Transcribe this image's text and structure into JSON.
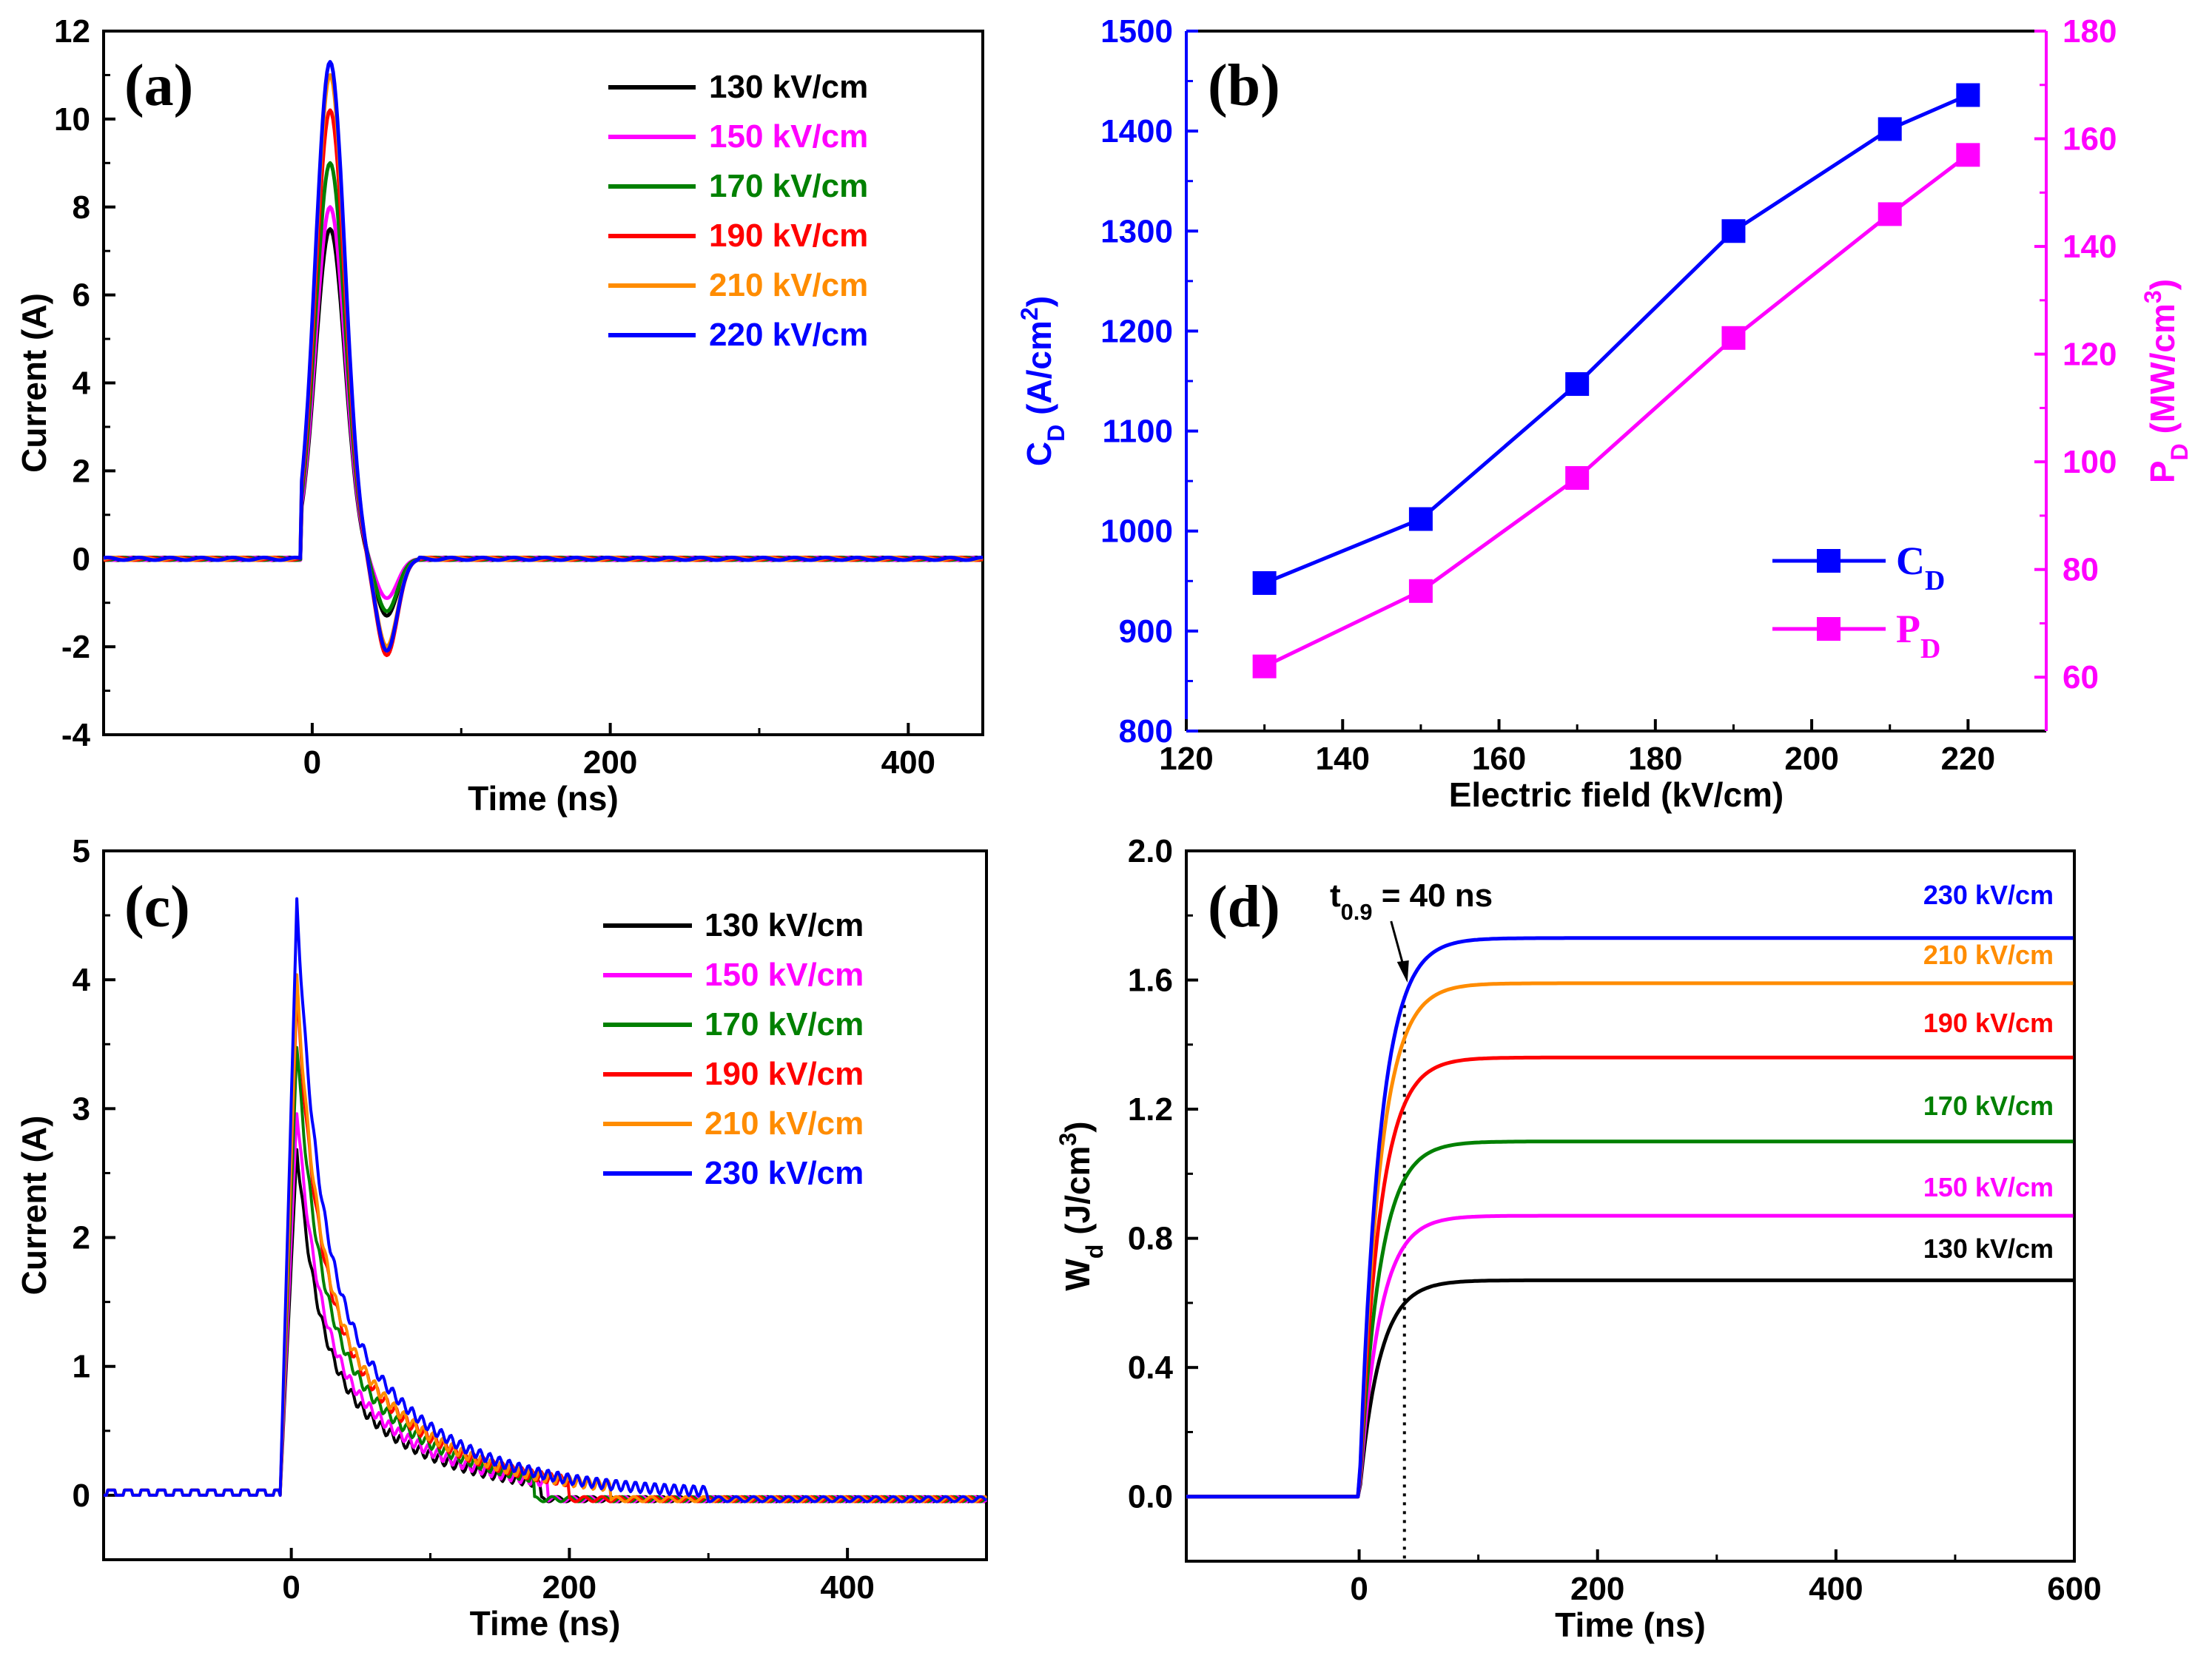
{
  "colors": {
    "130": "#000000",
    "150": "#ff00ff",
    "170": "#008000",
    "190": "#ff0000",
    "210": "#ff8c00",
    "220": "#0000ff",
    "230": "#0000ff",
    "cd": "#0000ff",
    "pd": "#ff00ff"
  },
  "chart_data": [
    {
      "panel": "(a)",
      "type": "line",
      "xlabel": "Time (ns)",
      "ylabel": "Current (A)",
      "xlim": [
        -140,
        450
      ],
      "ylim": [
        -4,
        12
      ],
      "xticks": [
        0,
        200,
        400
      ],
      "yticks": [
        -4,
        -2,
        0,
        2,
        4,
        6,
        8,
        10,
        12
      ],
      "xtick_labels": [
        "0",
        "200",
        "400"
      ],
      "ytick_labels": [
        "-4",
        "-2",
        "0",
        "2",
        "4",
        "6",
        "8",
        "10",
        "12"
      ],
      "legend": "top-right",
      "series": [
        {
          "name": "130 kV/cm",
          "key": "130",
          "peak": 7.5,
          "valley": -1.3
        },
        {
          "name": "150 kV/cm",
          "key": "150",
          "peak": 8.0,
          "valley": -0.9
        },
        {
          "name": "170 kV/cm",
          "key": "170",
          "peak": 9.0,
          "valley": -1.2
        },
        {
          "name": "190 kV/cm",
          "key": "190",
          "peak": 10.2,
          "valley": -2.2
        },
        {
          "name": "210 kV/cm",
          "key": "210",
          "peak": 11.0,
          "valley": -2.0
        },
        {
          "name": "220 kV/cm",
          "key": "220",
          "peak": 11.3,
          "valley": -2.1
        }
      ]
    },
    {
      "panel": "(b)",
      "type": "line",
      "xlabel": "Electric field (kV/cm)",
      "ylabel_left": "C_D (A/cm^2)",
      "ylabel_right": "P_D (MW/cm^3)",
      "xlim": [
        120,
        230
      ],
      "ylim_left": [
        800,
        1500
      ],
      "ylim_right": [
        50,
        180
      ],
      "xticks": [
        120,
        140,
        160,
        180,
        200,
        220
      ],
      "xtick_labels": [
        "120",
        "140",
        "160",
        "180",
        "200",
        "220"
      ],
      "yticks_left": [
        800,
        900,
        1000,
        1100,
        1200,
        1300,
        1400,
        1500
      ],
      "ytick_labels_left": [
        "800",
        "900",
        "1000",
        "1100",
        "1200",
        "1300",
        "1400",
        "1500"
      ],
      "yticks_right": [
        60,
        80,
        100,
        120,
        140,
        160,
        180
      ],
      "ytick_labels_right": [
        "60",
        "80",
        "100",
        "120",
        "140",
        "160",
        "180"
      ],
      "legend": "bottom-right",
      "x": [
        130,
        150,
        170,
        190,
        210,
        220
      ],
      "series": [
        {
          "name": "C_D",
          "axis": "left",
          "values": [
            948,
            1012,
            1147,
            1300,
            1402,
            1436
          ]
        },
        {
          "name": "P_D",
          "axis": "right",
          "values": [
            62,
            76,
            97,
            123,
            146,
            157
          ]
        }
      ]
    },
    {
      "panel": "(c)",
      "type": "line",
      "xlabel": "Time (ns)",
      "ylabel": "Current (A)",
      "xlim": [
        -135,
        500
      ],
      "ylim": [
        -0.5,
        5
      ],
      "xticks": [
        0,
        200,
        400
      ],
      "yticks": [
        0,
        1,
        2,
        3,
        4,
        5
      ],
      "xtick_labels": [
        "0",
        "200",
        "400"
      ],
      "ytick_labels": [
        "0",
        "1",
        "2",
        "3",
        "4",
        "5"
      ],
      "legend": "top-right",
      "series": [
        {
          "name": "130 kV/cm",
          "key": "130",
          "peak": 2.7,
          "end": 180
        },
        {
          "name": "150 kV/cm",
          "key": "150",
          "peak": 3.0,
          "end": 185
        },
        {
          "name": "170 kV/cm",
          "key": "170",
          "peak": 3.5,
          "end": 175
        },
        {
          "name": "190 kV/cm",
          "key": "190",
          "peak": 3.9,
          "end": 200
        },
        {
          "name": "210 kV/cm",
          "key": "210",
          "peak": 4.0,
          "end": 230
        },
        {
          "name": "230 kV/cm",
          "key": "230",
          "peak": 4.6,
          "end": 300
        }
      ]
    },
    {
      "panel": "(d)",
      "type": "line",
      "xlabel": "Time (ns)",
      "ylabel": "W_d (J/cm^3)",
      "xlim": [
        -145,
        600
      ],
      "ylim": [
        -0.2,
        2.0
      ],
      "xticks": [
        0,
        200,
        400,
        600
      ],
      "yticks": [
        0.0,
        0.4,
        0.8,
        1.2,
        1.6,
        2.0
      ],
      "xtick_labels": [
        "0",
        "200",
        "400",
        "600"
      ],
      "ytick_labels": [
        "0.0",
        "0.4",
        "0.8",
        "1.2",
        "1.6",
        "2.0"
      ],
      "annotation": {
        "text_main": "t",
        "text_sub": "0.9",
        "text_rest": " = 40 ns",
        "x": 38
      },
      "series": [
        {
          "name": "130 kV/cm",
          "key": "130",
          "final": 0.67
        },
        {
          "name": "150 kV/cm",
          "key": "150",
          "final": 0.87
        },
        {
          "name": "170 kV/cm",
          "key": "170",
          "final": 1.1
        },
        {
          "name": "190 kV/cm",
          "key": "190",
          "final": 1.36
        },
        {
          "name": "210 kV/cm",
          "key": "210",
          "final": 1.59
        },
        {
          "name": "230 kV/cm",
          "key": "230",
          "final": 1.73
        }
      ]
    }
  ]
}
